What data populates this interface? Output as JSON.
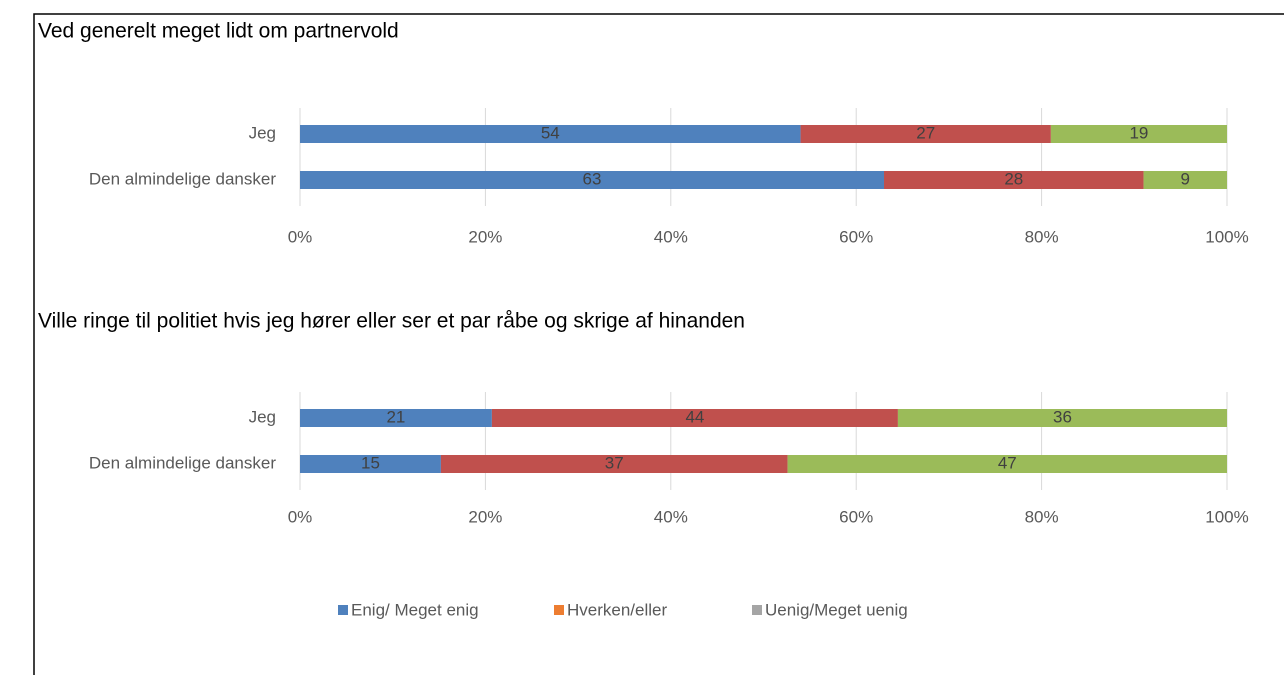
{
  "chart_data": [
    {
      "type": "stacked-bar-horizontal",
      "title": "Ved generelt meget lidt om partnervold",
      "categories": [
        "Jeg",
        "Den almindelige dansker"
      ],
      "series": [
        {
          "color": "#4f81bd",
          "values": [
            54,
            63
          ]
        },
        {
          "color": "#c0504d",
          "values": [
            27,
            28
          ]
        },
        {
          "color": "#9bbb59",
          "values": [
            19,
            9
          ]
        }
      ],
      "xlim": [
        0,
        100
      ],
      "xticks": [
        {
          "value": 0,
          "label": "0%"
        },
        {
          "value": 20,
          "label": "20%"
        },
        {
          "value": 40,
          "label": "40%"
        },
        {
          "value": 60,
          "label": "60%"
        },
        {
          "value": 80,
          "label": "80%"
        },
        {
          "value": 100,
          "label": "100%"
        }
      ],
      "grid": true
    },
    {
      "type": "stacked-bar-horizontal",
      "title": "Ville ringe til politiet hvis jeg hører eller ser et par råbe og skrige af hinanden",
      "categories": [
        "Jeg",
        "Den almindelige dansker"
      ],
      "series": [
        {
          "color": "#4f81bd",
          "values": [
            20.7,
            15.2
          ],
          "value_labels": [
            "21",
            "15"
          ]
        },
        {
          "color": "#c0504d",
          "values": [
            43.8,
            37.4
          ],
          "value_labels": [
            "44",
            "37"
          ]
        },
        {
          "color": "#9bbb59",
          "values": [
            35.5,
            47.4
          ],
          "value_labels": [
            "36",
            "47"
          ]
        }
      ],
      "xlim": [
        0,
        100
      ],
      "xticks": [
        {
          "value": 0,
          "label": "0%"
        },
        {
          "value": 20,
          "label": "20%"
        },
        {
          "value": 40,
          "label": "40%"
        },
        {
          "value": 60,
          "label": "60%"
        },
        {
          "value": 80,
          "label": "80%"
        },
        {
          "value": 100,
          "label": "100%"
        }
      ],
      "grid": true
    }
  ],
  "legend": [
    {
      "name": "Enig/ Meget enig",
      "color": "#4f81bd"
    },
    {
      "name": "Hverken/eller",
      "color": "#ed7d31"
    },
    {
      "name": "Uenig/Meget uenig",
      "color": "#a5a5a5"
    }
  ]
}
